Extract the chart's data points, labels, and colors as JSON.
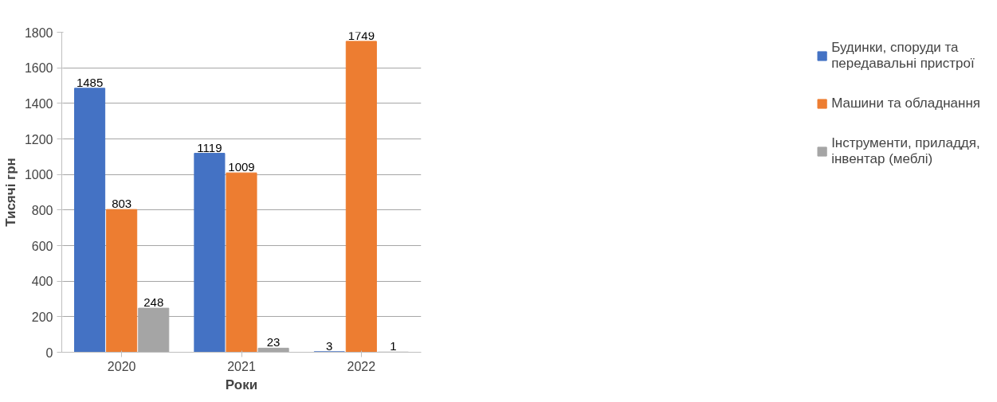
{
  "chart_data": {
    "type": "bar",
    "xlabel": "Роки",
    "ylabel": "Тисячі грн",
    "categories": [
      "2020",
      "2021",
      "2022"
    ],
    "series": [
      {
        "name": "Будинки, споруди та передавальні пристрої",
        "color": "#4472c4",
        "values": [
          1485,
          1119,
          3
        ]
      },
      {
        "name": "Машини та обладнання",
        "color": "#ed7d31",
        "values": [
          803,
          1009,
          1749
        ]
      },
      {
        "name": "Інструменти, приладдя, інвентар (меблі)",
        "color": "#a5a5a5",
        "values": [
          248,
          23,
          1
        ]
      }
    ],
    "ylim": [
      0,
      1800
    ],
    "yticks": [
      0,
      200,
      400,
      600,
      800,
      1000,
      1200,
      1400,
      1600,
      1800
    ],
    "grid": "y",
    "legend": "right",
    "data_labels": true
  }
}
